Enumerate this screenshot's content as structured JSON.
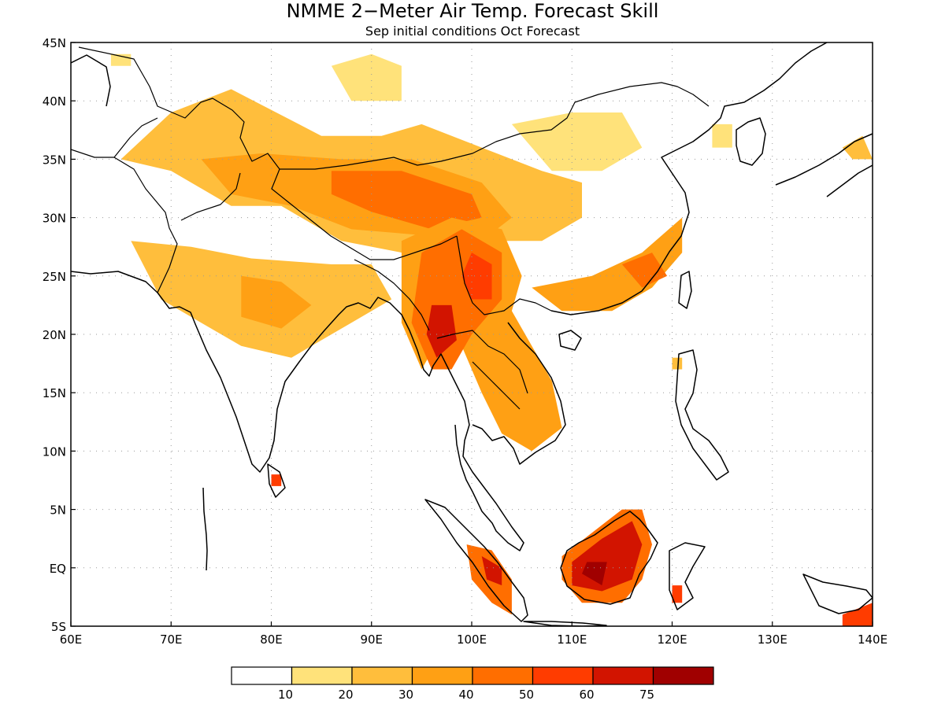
{
  "title": "NMME 2−Meter Air Temp. Forecast Skill",
  "subtitle": "Sep initial conditions  Oct Forecast",
  "lon_labels": [
    "60E",
    "70E",
    "80E",
    "90E",
    "100E",
    "110E",
    "120E",
    "130E",
    "140E"
  ],
  "lat_labels": [
    "45N",
    "40N",
    "35N",
    "30N",
    "25N",
    "20N",
    "15N",
    "10N",
    "5N",
    "EQ",
    "5S"
  ],
  "colorbar": {
    "labels": [
      "10",
      "20",
      "30",
      "40",
      "50",
      "60",
      "75"
    ],
    "colors": [
      "#ffffff",
      "#ffe27a",
      "#ffbe3c",
      "#ffa014",
      "#ff6e00",
      "#ff3c00",
      "#d21400",
      "#a00000"
    ]
  },
  "skill_regions": [
    {
      "name": "central-asia-tibet",
      "level": 2,
      "points": [
        [
          65,
          35
        ],
        [
          70,
          39
        ],
        [
          76,
          41
        ],
        [
          85,
          37
        ],
        [
          91,
          37
        ],
        [
          95,
          38
        ],
        [
          101,
          36
        ],
        [
          107,
          34
        ],
        [
          111,
          33
        ],
        [
          111,
          30
        ],
        [
          107,
          28
        ],
        [
          103,
          28
        ],
        [
          99,
          26
        ],
        [
          93,
          27
        ],
        [
          87,
          28
        ],
        [
          81,
          31
        ],
        [
          76,
          31
        ],
        [
          70,
          34
        ]
      ]
    },
    {
      "name": "north-china-band",
      "level": 1,
      "points": [
        [
          104,
          38
        ],
        [
          110,
          39
        ],
        [
          115,
          39
        ],
        [
          117,
          36
        ],
        [
          113,
          34
        ],
        [
          108,
          34
        ]
      ]
    },
    {
      "name": "tibet-core",
      "level": 3,
      "points": [
        [
          73,
          35
        ],
        [
          79,
          35.5
        ],
        [
          87,
          35
        ],
        [
          94,
          35
        ],
        [
          101,
          33
        ],
        [
          104,
          30
        ],
        [
          101,
          28
        ],
        [
          95,
          28.5
        ],
        [
          88,
          29
        ],
        [
          82,
          31
        ],
        [
          76,
          32
        ]
      ]
    },
    {
      "name": "tibet-center",
      "level": 4,
      "points": [
        [
          86,
          34
        ],
        [
          93,
          34
        ],
        [
          100,
          32
        ],
        [
          101,
          30
        ],
        [
          96,
          29
        ],
        [
          90,
          30.5
        ],
        [
          86,
          32
        ]
      ]
    },
    {
      "name": "india-plains",
      "level": 2,
      "points": [
        [
          66,
          28
        ],
        [
          72,
          27.5
        ],
        [
          78,
          26.5
        ],
        [
          86,
          26
        ],
        [
          90,
          26
        ],
        [
          92,
          23
        ],
        [
          88,
          21
        ],
        [
          82,
          18
        ],
        [
          77,
          19
        ],
        [
          73,
          21
        ],
        [
          69,
          23
        ]
      ]
    },
    {
      "name": "india-core",
      "level": 3,
      "points": [
        [
          77,
          25
        ],
        [
          81,
          24.5
        ],
        [
          84,
          22.5
        ],
        [
          81,
          20.5
        ],
        [
          77,
          21.5
        ]
      ]
    },
    {
      "name": "indochina-yunnan",
      "level": 3,
      "points": [
        [
          93,
          28
        ],
        [
          98,
          30
        ],
        [
          103,
          29
        ],
        [
          105,
          25
        ],
        [
          104,
          22
        ],
        [
          108,
          16
        ],
        [
          109,
          12
        ],
        [
          106,
          10
        ],
        [
          103,
          11.5
        ],
        [
          101,
          15
        ],
        [
          99,
          19
        ],
        [
          97,
          20
        ],
        [
          95,
          17
        ],
        [
          93,
          21
        ]
      ]
    },
    {
      "name": "myanmar-yunnan-core",
      "level": 4,
      "points": [
        [
          95,
          27
        ],
        [
          99,
          29
        ],
        [
          103,
          27
        ],
        [
          103,
          23
        ],
        [
          100,
          20
        ],
        [
          98,
          17
        ],
        [
          96,
          17
        ],
        [
          94,
          21
        ]
      ]
    },
    {
      "name": "myanmar-peak",
      "level": 6,
      "points": [
        [
          96,
          22.5
        ],
        [
          98,
          22.5
        ],
        [
          98.5,
          19.5
        ],
        [
          96.5,
          18
        ],
        [
          95.5,
          20
        ]
      ]
    },
    {
      "name": "yunnan-peak",
      "level": 5,
      "points": [
        [
          100,
          27
        ],
        [
          102,
          26
        ],
        [
          102,
          23
        ],
        [
          100,
          23
        ],
        [
          99,
          25
        ]
      ]
    },
    {
      "name": "south-china",
      "level": 3,
      "points": [
        [
          106,
          24
        ],
        [
          112,
          25
        ],
        [
          117,
          27
        ],
        [
          121,
          30
        ],
        [
          121,
          27
        ],
        [
          118,
          24
        ],
        [
          114,
          22
        ],
        [
          109,
          22
        ]
      ]
    },
    {
      "name": "east-china-core",
      "level": 4,
      "points": [
        [
          115,
          26
        ],
        [
          118,
          27
        ],
        [
          119.5,
          25
        ],
        [
          117,
          24
        ]
      ]
    },
    {
      "name": "borneo",
      "level": 4,
      "points": [
        [
          109,
          1
        ],
        [
          112,
          3
        ],
        [
          115,
          5
        ],
        [
          117,
          5
        ],
        [
          118,
          2
        ],
        [
          117,
          -1
        ],
        [
          115,
          -3
        ],
        [
          111,
          -3
        ],
        [
          109,
          -1
        ]
      ]
    },
    {
      "name": "borneo-core",
      "level": 6,
      "points": [
        [
          110,
          0.5
        ],
        [
          113,
          2.5
        ],
        [
          116,
          4
        ],
        [
          117,
          2
        ],
        [
          116,
          -1
        ],
        [
          113,
          -2
        ],
        [
          110,
          -1.5
        ]
      ]
    },
    {
      "name": "borneo-peak",
      "level": 7,
      "points": [
        [
          111,
          -0.5
        ],
        [
          113,
          -1.5
        ],
        [
          113.5,
          0.5
        ],
        [
          111.5,
          0.5
        ]
      ]
    },
    {
      "name": "sumatra",
      "level": 4,
      "points": [
        [
          99.5,
          2
        ],
        [
          102,
          1.5
        ],
        [
          104,
          -1
        ],
        [
          104,
          -4
        ],
        [
          102,
          -3
        ],
        [
          100,
          -1
        ]
      ]
    },
    {
      "name": "sumatra-core",
      "level": 6,
      "points": [
        [
          101,
          1
        ],
        [
          103,
          0
        ],
        [
          103,
          -1.5
        ],
        [
          101.5,
          -1
        ]
      ]
    },
    {
      "name": "sri-lanka",
      "level": 5,
      "points": [
        [
          80,
          8
        ],
        [
          81,
          8
        ],
        [
          81,
          7
        ],
        [
          80,
          7
        ]
      ]
    },
    {
      "name": "new-guinea",
      "level": 5,
      "points": [
        [
          137,
          -4
        ],
        [
          140,
          -3
        ],
        [
          140,
          -5
        ],
        [
          137,
          -5
        ]
      ]
    },
    {
      "name": "sulawesi",
      "level": 5,
      "points": [
        [
          120,
          -1.5
        ],
        [
          121,
          -1.5
        ],
        [
          121,
          -3
        ],
        [
          120,
          -3
        ]
      ]
    },
    {
      "name": "japan-patch",
      "level": 2,
      "points": [
        [
          137,
          36
        ],
        [
          139,
          37
        ],
        [
          140,
          35
        ],
        [
          138,
          35
        ]
      ]
    },
    {
      "name": "korea-patch",
      "level": 1,
      "points": [
        [
          124,
          38
        ],
        [
          126,
          38
        ],
        [
          126,
          36
        ],
        [
          124,
          36
        ]
      ]
    },
    {
      "name": "philippines-patch",
      "level": 2,
      "points": [
        [
          120,
          18
        ],
        [
          121,
          18
        ],
        [
          121,
          17
        ],
        [
          120,
          17
        ]
      ]
    },
    {
      "name": "mongolia-patch",
      "level": 1,
      "points": [
        [
          86,
          43
        ],
        [
          90,
          44
        ],
        [
          93,
          43
        ],
        [
          93,
          40
        ],
        [
          88,
          40
        ]
      ]
    },
    {
      "name": "kazakh-patch",
      "level": 1,
      "points": [
        [
          64,
          44
        ],
        [
          66,
          44
        ],
        [
          66,
          43
        ],
        [
          64,
          43
        ]
      ]
    }
  ]
}
